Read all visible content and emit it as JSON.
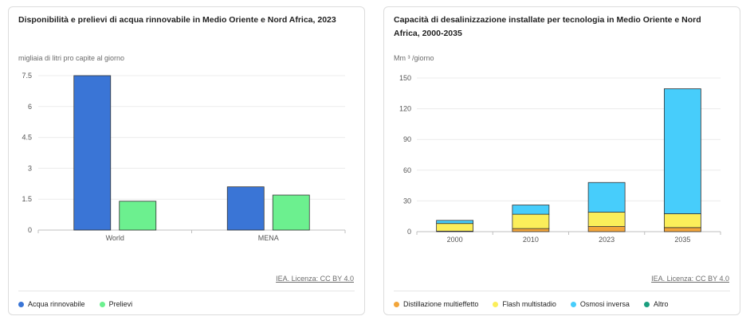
{
  "charts": {
    "left": {
      "title": "Disponibilità e prelievi di acqua rinnovabile in Medio Oriente e Nord Africa, 2023",
      "unit": "migliaia di litri pro capite al giorno",
      "source": "IEA. Licenza: CC BY 4.0",
      "legend": [
        {
          "label": "Acqua rinnovabile",
          "color": "#3a75d6"
        },
        {
          "label": "Prelievi",
          "color": "#6cf08f"
        }
      ]
    },
    "right": {
      "title": "Capacità di desalinizzazione installate per tecnologia in Medio Oriente e Nord Africa, 2000-2035",
      "unit": "Mm ³ /giorno",
      "source": "IEA. Licenza: CC BY 4.0",
      "legend": [
        {
          "label": "Distillazione multieffetto",
          "color": "#f2a53a"
        },
        {
          "label": "Flash multistadio",
          "color": "#fbee5a"
        },
        {
          "label": "Osmosi inversa",
          "color": "#47cdfb"
        },
        {
          "label": "Altro",
          "color": "#1a9e7e"
        }
      ]
    }
  },
  "chart_data": [
    {
      "type": "bar",
      "title": "Disponibilità e prelievi di acqua rinnovabile in Medio Oriente e Nord Africa, 2023",
      "ylabel": "migliaia di litri pro capite al giorno",
      "categories": [
        "World",
        "MENA"
      ],
      "series": [
        {
          "name": "Acqua rinnovabile",
          "values": [
            7.5,
            2.1
          ],
          "color": "#3a75d6"
        },
        {
          "name": "Prelievi",
          "values": [
            1.4,
            1.7
          ],
          "color": "#6cf08f"
        }
      ],
      "ylim": [
        0,
        7.5
      ],
      "yticks": [
        "0",
        "1.5",
        "3",
        "4.5",
        "6",
        "7.5"
      ],
      "grid": true,
      "legend": "bottom-left"
    },
    {
      "type": "bar",
      "stacked": true,
      "title": "Capacità di desalinizzazione installate per tecnologia in Medio Oriente e Nord Africa, 2000-2035",
      "ylabel": "Mm ³ /giorno",
      "categories": [
        "2000",
        "2010",
        "2023",
        "2035"
      ],
      "series": [
        {
          "name": "Distillazione multieffetto",
          "values": [
            0.5,
            3,
            5,
            4
          ],
          "color": "#f2a53a"
        },
        {
          "name": "Flash multistadio",
          "values": [
            7.5,
            14,
            14,
            13.5
          ],
          "color": "#fbee5a"
        },
        {
          "name": "Osmosi inversa",
          "values": [
            3,
            9,
            29,
            122
          ],
          "color": "#47cdfb"
        },
        {
          "name": "Altro",
          "values": [
            0,
            0,
            0,
            0
          ],
          "color": "#1a9e7e"
        }
      ],
      "ylim": [
        0,
        150
      ],
      "yticks": [
        "0",
        "30",
        "60",
        "90",
        "120",
        "150"
      ],
      "grid": true,
      "legend": "bottom-left"
    }
  ]
}
